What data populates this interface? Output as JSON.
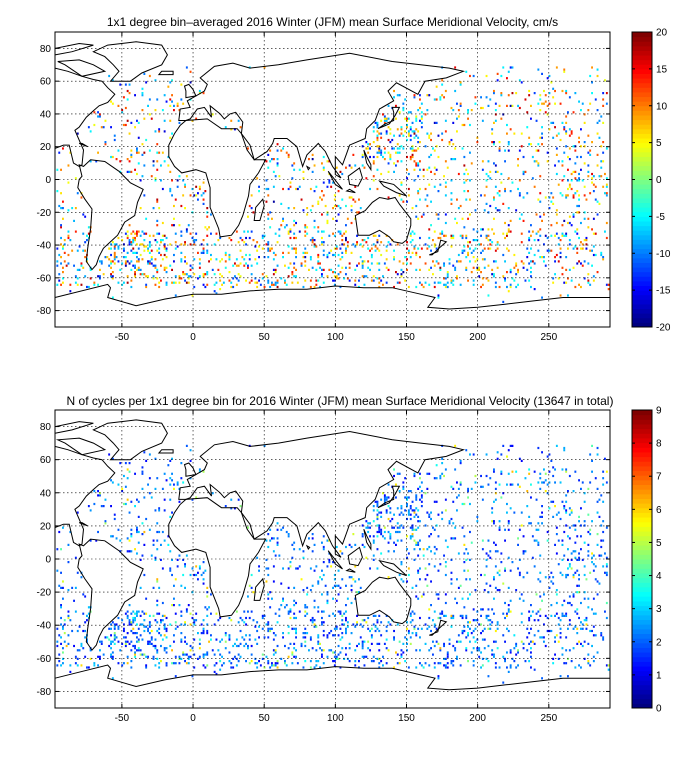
{
  "chart_data": [
    {
      "type": "heatmap",
      "title": "1x1 degree bin–averaged 2016 Winter (JFM) mean Surface Meridional Velocity, cm/s",
      "xlabel": "",
      "ylabel": "",
      "xlim": [
        -97,
        293
      ],
      "ylim": [
        -90,
        90
      ],
      "xticks": [
        -50,
        0,
        50,
        100,
        150,
        200,
        250
      ],
      "yticks": [
        -80,
        -60,
        -40,
        -20,
        0,
        20,
        40,
        60,
        80
      ],
      "grid": true,
      "colorbar": {
        "min": -20,
        "max": 20,
        "ticks": [
          -20,
          -15,
          -10,
          -5,
          0,
          5,
          10,
          15,
          20
        ],
        "colormap": "jet"
      }
    },
    {
      "type": "heatmap",
      "title": "N of cycles per 1x1 degree bin for 2016 Winter (JFM) mean Surface Meridional Velocity (13647 in total)",
      "xlabel": "",
      "ylabel": "",
      "xlim": [
        -97,
        293
      ],
      "ylim": [
        -90,
        90
      ],
      "xticks": [
        -50,
        0,
        50,
        100,
        150,
        200,
        250
      ],
      "yticks": [
        -80,
        -60,
        -40,
        -20,
        0,
        20,
        40,
        60,
        80
      ],
      "grid": true,
      "colorbar": {
        "min": 0,
        "max": 9,
        "ticks": [
          0,
          1,
          2,
          3,
          4,
          5,
          6,
          7,
          8,
          9
        ],
        "colormap": "jet"
      }
    }
  ]
}
